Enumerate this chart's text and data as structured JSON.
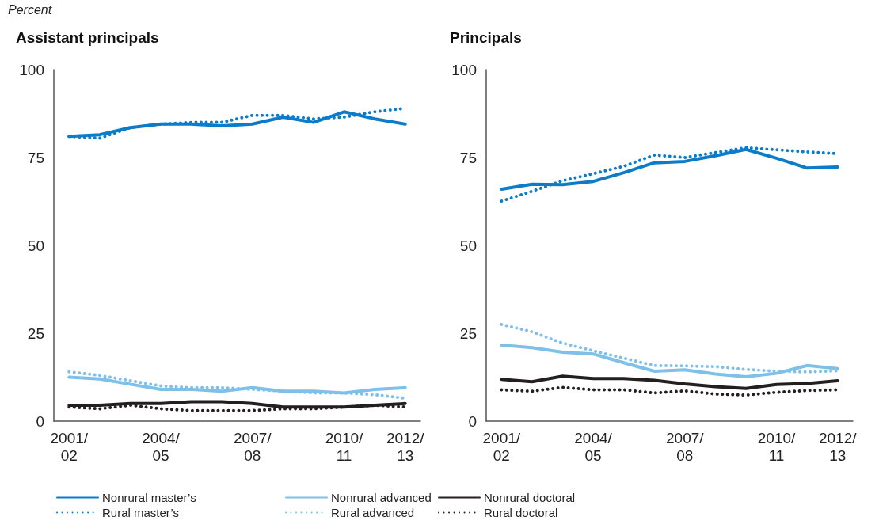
{
  "chart_data": [
    {
      "type": "line",
      "title": "Assistant principals",
      "ylabel": "Percent",
      "categories": [
        "2001/02",
        null,
        null,
        "2004/05",
        null,
        null,
        "2007/08",
        null,
        null,
        "2010/11",
        null,
        "2012/13"
      ],
      "ylim": [
        0,
        100
      ],
      "yticks": [
        0,
        25,
        50,
        75,
        100
      ],
      "grid": false,
      "legend": "bottom",
      "marker": "none",
      "series": [
        {
          "name": "Nonrural master’s",
          "color": "#0a7cc9",
          "line_style": "solid",
          "values": [
            81,
            81.5,
            83.5,
            84.5,
            84.5,
            84,
            84.5,
            86.5,
            85,
            88,
            86,
            84.5
          ]
        },
        {
          "name": "Rural master’s",
          "color": "#0a7cc9",
          "line_style": "dotted",
          "values": [
            81,
            80.5,
            83.5,
            84.5,
            85,
            85,
            87,
            87,
            86,
            86.5,
            88,
            89
          ]
        },
        {
          "name": "Nonrural advanced",
          "color": "#7fc0e8",
          "line_style": "solid",
          "values": [
            12.5,
            12,
            10.5,
            9,
            9,
            8.5,
            9.5,
            8.5,
            8.5,
            8,
            9,
            9.5
          ]
        },
        {
          "name": "Rural advanced",
          "color": "#7fc0e8",
          "line_style": "dotted",
          "values": [
            14,
            13,
            11.5,
            10,
            9.5,
            9.5,
            9,
            8.5,
            8,
            8,
            7.5,
            6.5
          ]
        },
        {
          "name": "Nonrural doctoral",
          "color": "#231f20",
          "line_style": "solid",
          "values": [
            4.5,
            4.5,
            5,
            5,
            5.5,
            5.5,
            5,
            4,
            4,
            4,
            4.5,
            5
          ]
        },
        {
          "name": "Rural doctoral",
          "color": "#231f20",
          "line_style": "dotted",
          "values": [
            4,
            3.5,
            4.5,
            3.5,
            3,
            3,
            3,
            3.5,
            3.5,
            4,
            4.5,
            4
          ]
        }
      ]
    },
    {
      "type": "line",
      "title": "Principals",
      "categories": [
        "2001/02",
        null,
        null,
        "2004/05",
        null,
        null,
        "2007/08",
        null,
        null,
        "2010/11",
        null,
        "2012/13"
      ],
      "ylim": [
        0,
        100
      ],
      "yticks": [
        0,
        25,
        50,
        75,
        100
      ],
      "grid": false,
      "legend": false,
      "marker": "none",
      "series": [
        {
          "color": "#0a7cc9",
          "line_style": "solid",
          "values": [
            66,
            67.4,
            67.3,
            68.2,
            70.7,
            73.5,
            73.9,
            75.5,
            77.3,
            74.8,
            72,
            72.3
          ]
        },
        {
          "color": "#0a7cc9",
          "line_style": "dotted",
          "values": [
            62.6,
            65.4,
            68.4,
            70.4,
            72.5,
            75.7,
            75,
            76.4,
            77.8,
            77.2,
            76.6,
            76.1
          ]
        },
        {
          "color": "#7fc0e8",
          "line_style": "solid",
          "values": [
            21.6,
            20.9,
            19.6,
            19.1,
            16.6,
            14.2,
            14.6,
            13.4,
            12.6,
            13.6,
            15.8,
            14.9
          ]
        },
        {
          "color": "#7fc0e8",
          "line_style": "dotted",
          "values": [
            27.5,
            25.4,
            22.2,
            20,
            17.9,
            15.8,
            15.7,
            15.5,
            14.7,
            14.2,
            14,
            14.3
          ]
        },
        {
          "color": "#231f20",
          "line_style": "solid",
          "values": [
            11.9,
            11.2,
            12.8,
            12.1,
            12.1,
            11.6,
            10.6,
            9.8,
            9.3,
            10.4,
            10.7,
            11.5
          ]
        },
        {
          "color": "#231f20",
          "line_style": "dotted",
          "values": [
            8.9,
            8.5,
            9.6,
            8.9,
            8.9,
            8,
            8.6,
            7.7,
            7.4,
            8.2,
            8.7,
            8.9
          ]
        }
      ]
    }
  ]
}
